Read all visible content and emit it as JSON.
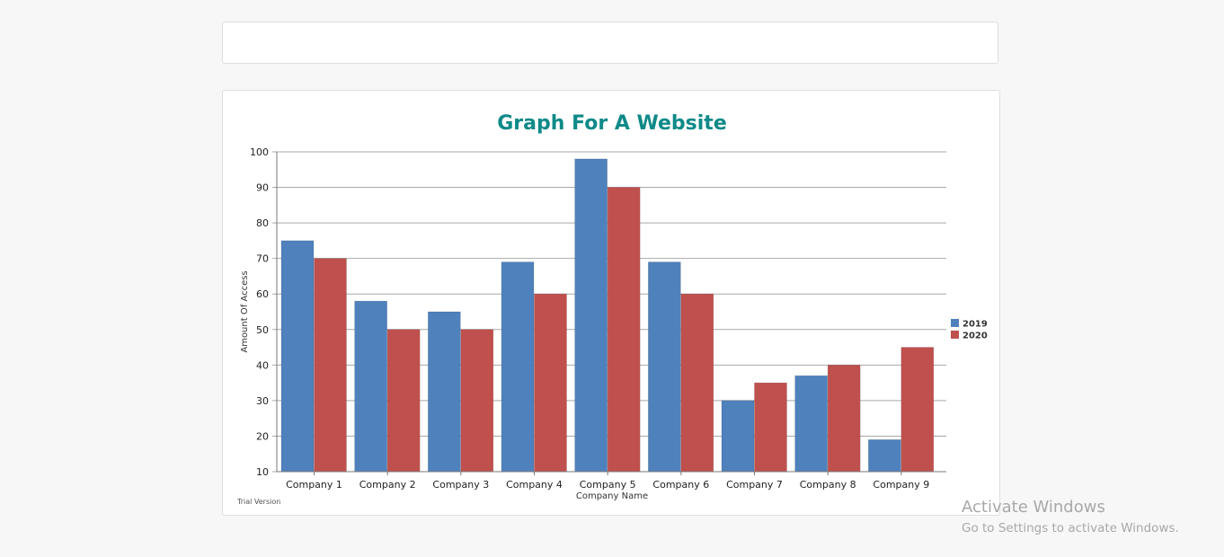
{
  "chart_data": {
    "type": "bar",
    "title": "Graph For A Website",
    "xlabel": "Company Name",
    "ylabel": "Amount Of Access",
    "categories": [
      "Company 1",
      "Company 2",
      "Company 3",
      "Company 4",
      "Company 5",
      "Company 6",
      "Company 7",
      "Company 8",
      "Company 9"
    ],
    "series": [
      {
        "name": "2019",
        "color": "#4f81bd",
        "values": [
          75,
          58,
          55,
          69,
          98,
          69,
          30,
          37,
          19
        ]
      },
      {
        "name": "2020",
        "color": "#c0504d",
        "values": [
          70,
          50,
          50,
          60,
          90,
          60,
          35,
          40,
          45
        ]
      }
    ],
    "ylim": [
      10,
      100
    ],
    "yticks": [
      10,
      20,
      30,
      40,
      50,
      60,
      70,
      80,
      90,
      100
    ],
    "grid": true,
    "legend_position": "right"
  },
  "footer": {
    "trial_text": "Trial Version"
  },
  "watermark": {
    "title": "Activate Windows",
    "subtitle": "Go to Settings to activate Windows."
  }
}
